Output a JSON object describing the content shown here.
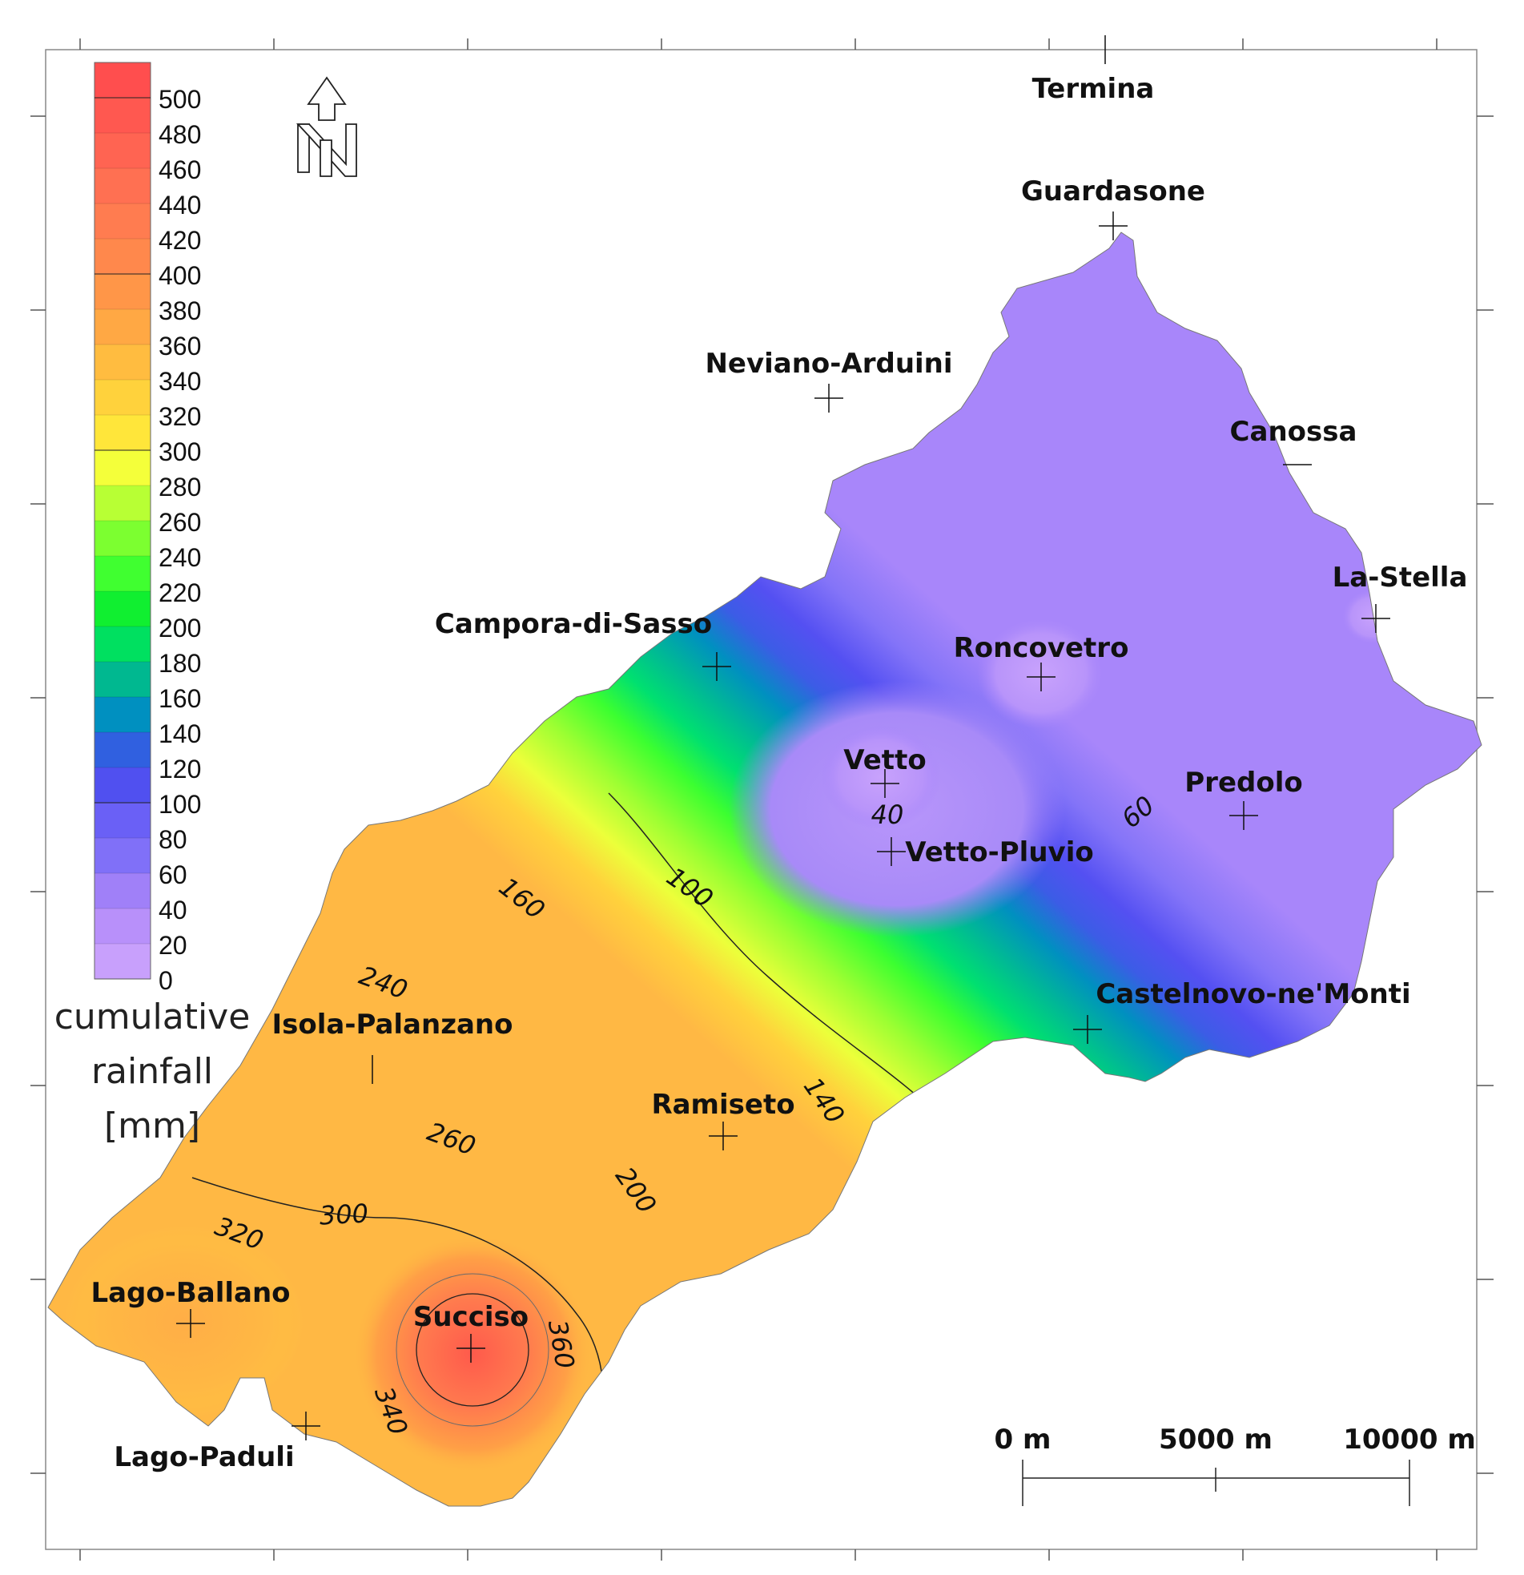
{
  "legend": {
    "title_lines": [
      "cumulative",
      "rainfall",
      "[mm]"
    ],
    "ticks": [
      "500",
      "480",
      "460",
      "440",
      "420",
      "400",
      "380",
      "360",
      "340",
      "320",
      "300",
      "280",
      "260",
      "240",
      "220",
      "200",
      "180",
      "160",
      "140",
      "120",
      "100",
      "80",
      "60",
      "40",
      "20",
      "0"
    ],
    "colors_top_to_bottom": [
      "#ff4e4e",
      "#ff5850",
      "#ff6452",
      "#ff7052",
      "#ff7c50",
      "#ff884c",
      "#ff9648",
      "#ffa844",
      "#ffbc40",
      "#ffd23c",
      "#ffe63a",
      "#f4ff3a",
      "#b8ff34",
      "#7cff30",
      "#40ff30",
      "#10ef30",
      "#00e060",
      "#00b890",
      "#0090c0",
      "#3060e0",
      "#5050f0",
      "#6a60f6",
      "#8070f8",
      "#a080f8",
      "#b890fa",
      "#c8a0fc"
    ]
  },
  "north_arrow": {
    "icon": "north-arrow-icon",
    "letter": "N"
  },
  "stations": [
    {
      "name": "Termina"
    },
    {
      "name": "Guardasone"
    },
    {
      "name": "Neviano-Arduini"
    },
    {
      "name": "Canossa"
    },
    {
      "name": "La-Stella"
    },
    {
      "name": "Campora-di-Sasso"
    },
    {
      "name": "Roncovetro"
    },
    {
      "name": "Vetto"
    },
    {
      "name": "Vetto-Pluvio"
    },
    {
      "name": "Predolo"
    },
    {
      "name": "Castelnovo-ne'Monti"
    },
    {
      "name": "Isola-Palanzano"
    },
    {
      "name": "Ramiseto"
    },
    {
      "name": "Lago-Ballano"
    },
    {
      "name": "Succiso"
    },
    {
      "name": "Lago-Paduli"
    }
  ],
  "contour_labels": [
    "100",
    "160",
    "240",
    "260",
    "300",
    "320",
    "200",
    "140",
    "40",
    "60",
    "360",
    "340"
  ],
  "scale_bar": {
    "labels": [
      "0 m",
      "5000 m",
      "10000 m"
    ]
  }
}
